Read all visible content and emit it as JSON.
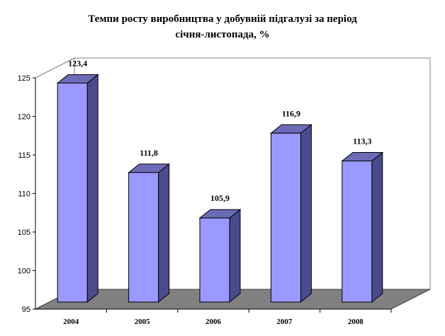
{
  "chart_data": {
    "type": "bar",
    "title_lines": [
      "Темпи росту виробництва у добувній підгалузі за період",
      "січня-листопада, %"
    ],
    "categories": [
      "2004",
      "2005",
      "2006",
      "2007",
      "2008"
    ],
    "values": [
      123.4,
      111.8,
      105.9,
      116.9,
      113.3
    ],
    "data_labels": [
      "123,4",
      "111,8",
      "105,9",
      "116,9",
      "113,3"
    ],
    "ylim": [
      95,
      125
    ],
    "yticks": [
      95,
      100,
      105,
      110,
      115,
      120,
      125
    ],
    "bar_color": "#9999ff",
    "bar_side_color": "#4a4a8c",
    "bar_top_color": "#6b6bb8",
    "floor_color": "#808080",
    "grid": false,
    "legend": "none"
  }
}
